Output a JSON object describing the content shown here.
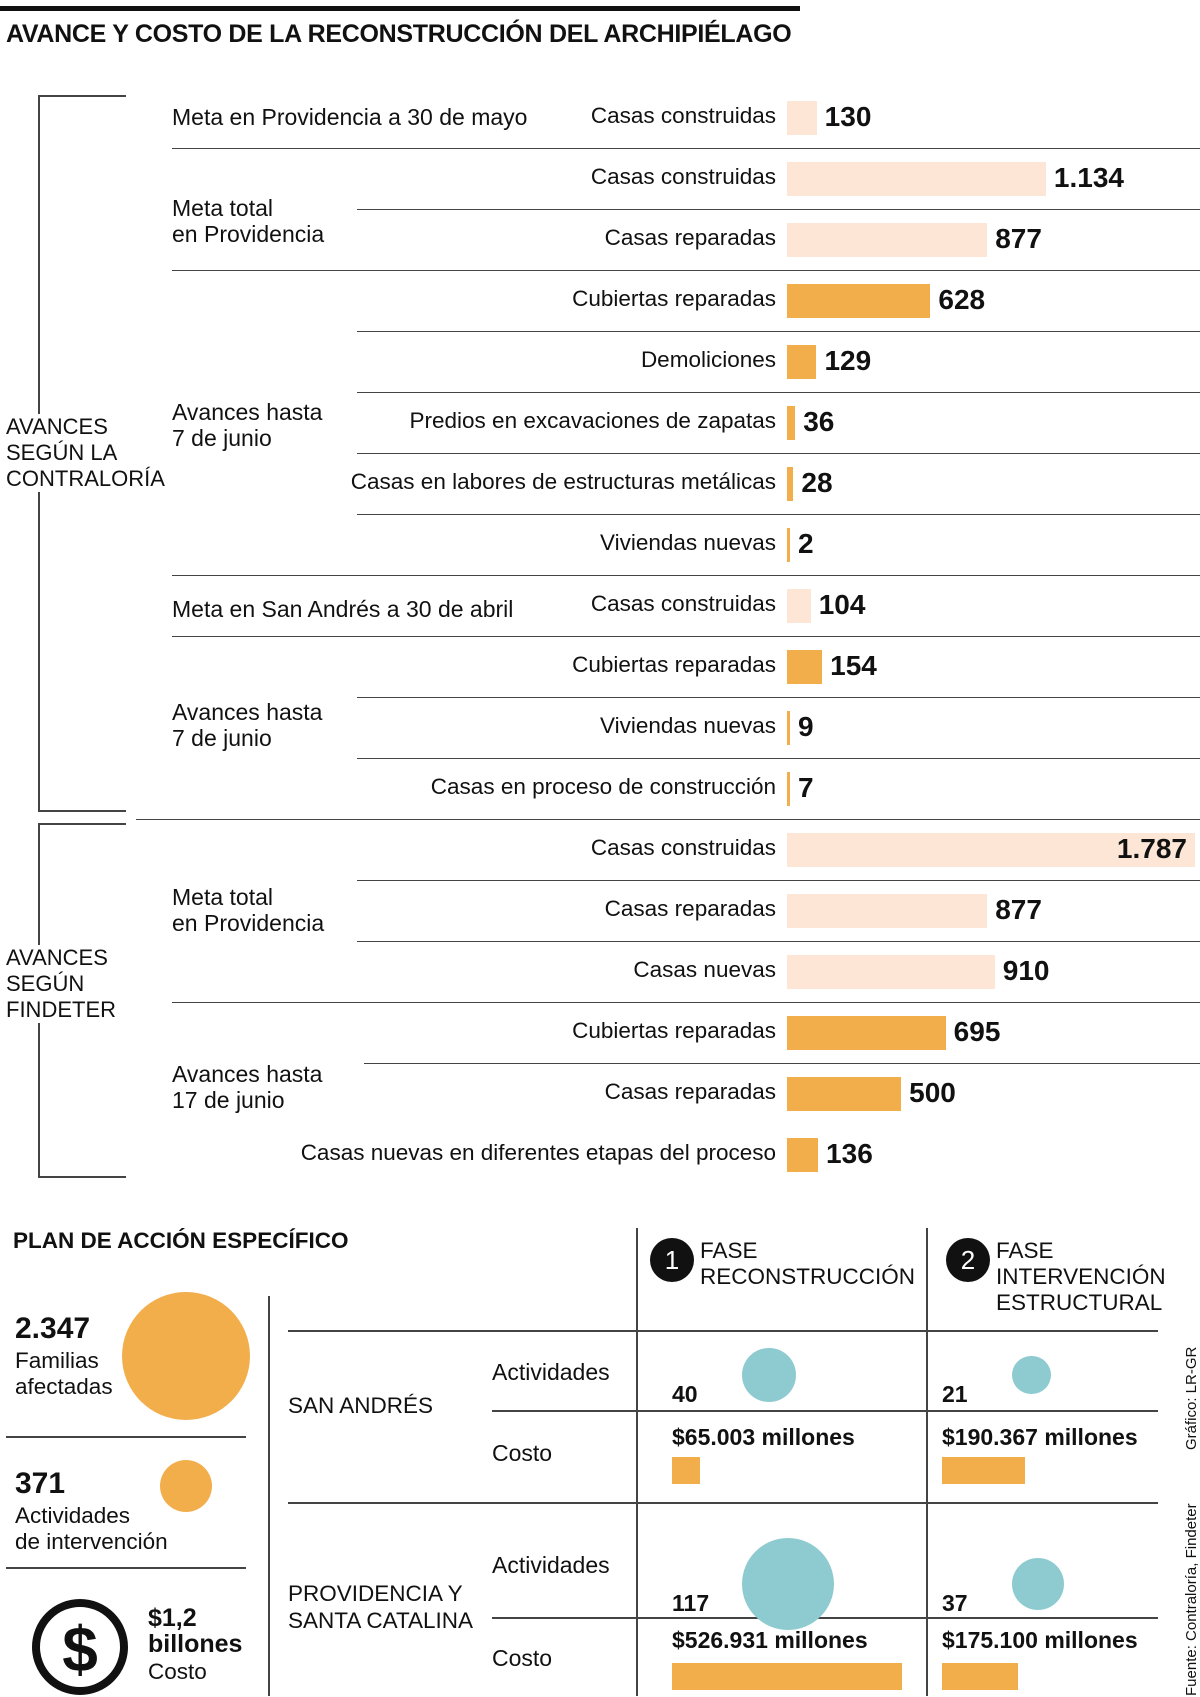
{
  "title": "AVANCE Y COSTO DE LA RECONSTRUCCIÓN DEL ARCHIPIÉLAGO",
  "colors": {
    "goal": "#fde6d5",
    "progress": "#f3ae4c",
    "activities": "#8ecbd0"
  },
  "sections": {
    "contraloria": [
      "AVANCES",
      "SEGÚN LA",
      "CONTRALORÍA"
    ],
    "findeter": [
      "AVANCES",
      "SEGÚN",
      "FINDETER"
    ]
  },
  "groups": {
    "g1": "Meta en Providencia a 30 de mayo",
    "g2": [
      "Meta total",
      "en Providencia"
    ],
    "g3": [
      "Avances hasta",
      "7 de junio"
    ],
    "g4": "Meta en San Andrés a 30 de abril",
    "g5": [
      "Avances hasta",
      "7 de junio"
    ],
    "g6": [
      "Meta total",
      "en Providencia"
    ],
    "g7": [
      "Avances hasta",
      "17 de junio"
    ]
  },
  "chart_data": {
    "type": "bar",
    "orientation": "horizontal",
    "title": "AVANCE Y COSTO DE LA RECONSTRUCCIÓN DEL ARCHIPIÉLAGO",
    "max_value": 1787,
    "rows": [
      {
        "label": "Casas construidas",
        "value": 130,
        "display": "130",
        "kind": "goal"
      },
      {
        "label": "Casas construidas",
        "value": 1134,
        "display": "1.134",
        "kind": "goal"
      },
      {
        "label": "Casas reparadas",
        "value": 877,
        "display": "877",
        "kind": "goal"
      },
      {
        "label": "Cubiertas reparadas",
        "value": 628,
        "display": "628",
        "kind": "progress"
      },
      {
        "label": "Demoliciones",
        "value": 129,
        "display": "129",
        "kind": "progress"
      },
      {
        "label": "Predios en excavaciones de zapatas",
        "value": 36,
        "display": "36",
        "kind": "progress"
      },
      {
        "label": "Casas en labores de estructuras metálicas",
        "value": 28,
        "display": "28",
        "kind": "progress"
      },
      {
        "label": "Viviendas nuevas",
        "value": 2,
        "display": "2",
        "kind": "progress"
      },
      {
        "label": "Casas construidas",
        "value": 104,
        "display": "104",
        "kind": "goal"
      },
      {
        "label": "Cubiertas reparadas",
        "value": 154,
        "display": "154",
        "kind": "progress"
      },
      {
        "label": "Viviendas nuevas",
        "value": 9,
        "display": "9",
        "kind": "progress"
      },
      {
        "label": "Casas en proceso de construcción",
        "value": 7,
        "display": "7",
        "kind": "progress"
      },
      {
        "label": "Casas construidas",
        "value": 1787,
        "display": "1.787",
        "kind": "goal"
      },
      {
        "label": "Casas reparadas",
        "value": 877,
        "display": "877",
        "kind": "goal"
      },
      {
        "label": "Casas nuevas",
        "value": 910,
        "display": "910",
        "kind": "goal"
      },
      {
        "label": "Cubiertas reparadas",
        "value": 695,
        "display": "695",
        "kind": "progress"
      },
      {
        "label": "Casas reparadas",
        "value": 500,
        "display": "500",
        "kind": "progress"
      },
      {
        "label": "Casas nuevas en diferentes etapas del proceso",
        "value": 136,
        "display": "136",
        "kind": "progress"
      }
    ]
  },
  "plan": {
    "title": "PLAN DE ACCIÓN ESPECÍFICO",
    "families": {
      "value": "2.347",
      "label": [
        "Familias",
        "afectadas"
      ],
      "count": 2347
    },
    "activities": {
      "value": "371",
      "label": [
        "Actividades",
        "de intervención"
      ],
      "count": 371
    },
    "cost": {
      "value": [
        "$1,2",
        "billones"
      ],
      "label": "Costo"
    },
    "phase1": {
      "num": "1",
      "label": [
        "FASE",
        "RECONSTRUCCIÓN"
      ]
    },
    "phase2": {
      "num": "2",
      "label": [
        "FASE",
        "INTERVENCIÓN",
        "ESTRUCTURAL"
      ]
    },
    "row_labels": {
      "activities": "Actividades",
      "cost": "Costo"
    },
    "places": {
      "san_andres": {
        "name": [
          "SAN ANDRÉS"
        ],
        "p1": {
          "activities": "40",
          "activities_n": 40,
          "cost": "$65.003 millones",
          "cost_n": 65003
        },
        "p2": {
          "activities": "21",
          "activities_n": 21,
          "cost": "$190.367 millones",
          "cost_n": 190367
        }
      },
      "providencia": {
        "name": [
          "PROVIDENCIA Y",
          "SANTA CATALINA"
        ],
        "p1": {
          "activities": "117",
          "activities_n": 117,
          "cost": "$526.931 millones",
          "cost_n": 526931
        },
        "p2": {
          "activities": "37",
          "activities_n": 37,
          "cost": "$175.100 millones",
          "cost_n": 175100
        }
      }
    }
  },
  "credits": {
    "graphic": "Gráfico: LR-GR",
    "source": "Fuente: Contraloría, Findeter"
  }
}
